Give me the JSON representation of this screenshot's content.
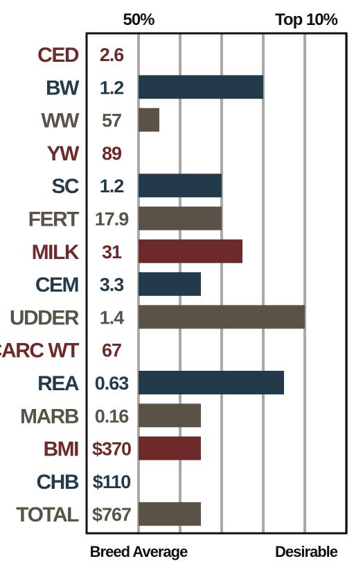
{
  "chart_data": {
    "type": "bar",
    "orientation": "horizontal",
    "top_labels": [
      "50%",
      "Top 10%"
    ],
    "bottom_labels": [
      "Breed Average",
      "Desirable"
    ],
    "xlim": [
      0,
      5
    ],
    "grid": true,
    "categories": [
      "CED",
      "BW",
      "WW",
      "YW",
      "SC",
      "FERT",
      "MILK",
      "CEM",
      "UDDER",
      "CARC WT",
      "REA",
      "MARB",
      "BMI",
      "CHB",
      "TOTAL"
    ],
    "values_text": [
      "2.6",
      "1.2",
      "57",
      "89",
      "1.2",
      "17.9",
      "31",
      "3.3",
      "1.4",
      "67",
      "0.63",
      "0.16",
      "$370",
      "$110",
      "$767"
    ],
    "bar_levels": [
      0,
      3,
      0.5,
      0,
      2,
      2,
      2.5,
      1.5,
      4,
      0,
      3.5,
      1.5,
      1.5,
      0,
      1.5
    ],
    "row_colors": [
      "#6e2a2a",
      "#233a4b",
      "#5a5247",
      "#6e2a2a",
      "#233a4b",
      "#5a5247",
      "#6e2a2a",
      "#233a4b",
      "#5a5247",
      "#6e2a2a",
      "#233a4b",
      "#5a5247",
      "#6e2a2a",
      "#233a4b",
      "#5a5247"
    ],
    "colors": {
      "maroon": "#6e2a2a",
      "navy": "#233a4b",
      "taupe": "#5a5247",
      "grid": "#a9a8ab",
      "frame": "#111111"
    }
  }
}
